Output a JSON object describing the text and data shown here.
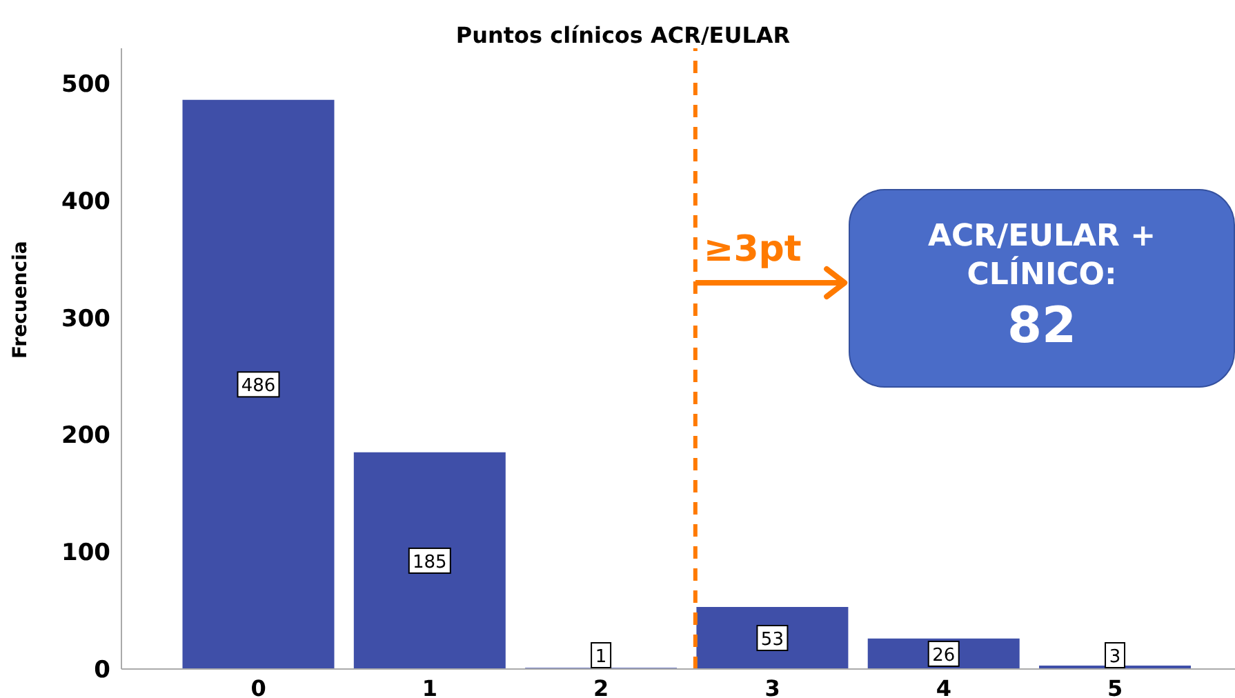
{
  "chart_data": {
    "type": "bar",
    "title": "Puntos clínicos ACR/EULAR",
    "ylabel": "Frecuencia",
    "x": [
      0,
      1,
      2,
      3,
      4,
      5
    ],
    "values": [
      486,
      185,
      1,
      53,
      26,
      3
    ],
    "color": "#3f4fa8",
    "xlim": [
      -0.8,
      5.7
    ],
    "xticks": [
      0,
      1,
      2,
      3,
      4,
      5
    ],
    "ylim": [
      0,
      530
    ],
    "yticks": [
      0,
      100,
      200,
      300,
      400,
      500
    ],
    "data_labels": true,
    "ref_lines": [
      {
        "axis": "x",
        "value": 2.55,
        "color": "#ff7a00",
        "line_style": "dashed"
      }
    ],
    "annotations": [
      "≥3pt",
      "ACR/EULAR +",
      "CLÍNICO:",
      "82"
    ]
  }
}
